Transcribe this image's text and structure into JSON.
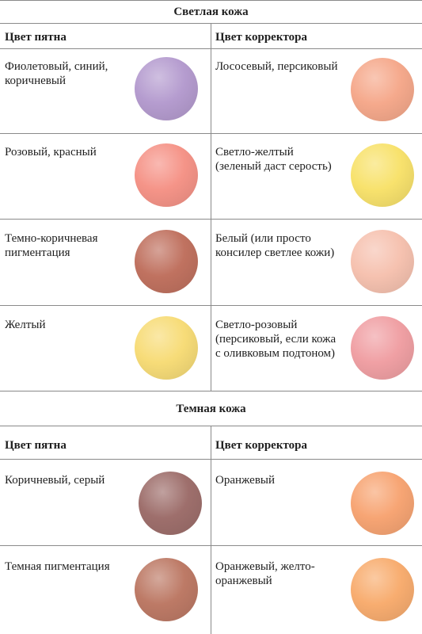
{
  "sections": [
    {
      "title": "Светлая кожа",
      "col_left": "Цвет пятна",
      "col_right": "Цвет корректора",
      "rows": [
        {
          "left_text": "Фиолетовый, синий, коричневый",
          "left_color": "#b59ccf",
          "right_text": "Лососевый, персиковый",
          "right_color": "#f5a98c"
        },
        {
          "left_text": "Розовый, красный",
          "left_color": "#f59488",
          "right_text": "Светло-желтый (зеленый даст серость)",
          "right_color": "#f8e26d"
        },
        {
          "left_text": "Темно-коричневая пигментация",
          "left_color": "#c07260",
          "right_text": "Белый (или просто консилер светлее кожи)",
          "right_color": "#f6c2b0"
        },
        {
          "left_text": "Желтый",
          "left_color": "#f7dc78",
          "right_text": "Светло-розовый (персиковый, если кожа с оливковым подтоном)",
          "right_color": "#f0a0a4"
        }
      ]
    },
    {
      "title": "Темная кожа",
      "col_left": "Цвет пятна",
      "col_right": "Цвет корректора",
      "rows": [
        {
          "left_text": "Коричневый, серый",
          "left_color": "#9e6f6c",
          "right_text": "Оранжевый",
          "right_color": "#f7a574"
        },
        {
          "left_text": "Темная пигментация",
          "left_color": "#bd7a66",
          "right_text": "Оранжевый, желто-оранжевый",
          "right_color": "#f8ad70"
        }
      ]
    }
  ]
}
